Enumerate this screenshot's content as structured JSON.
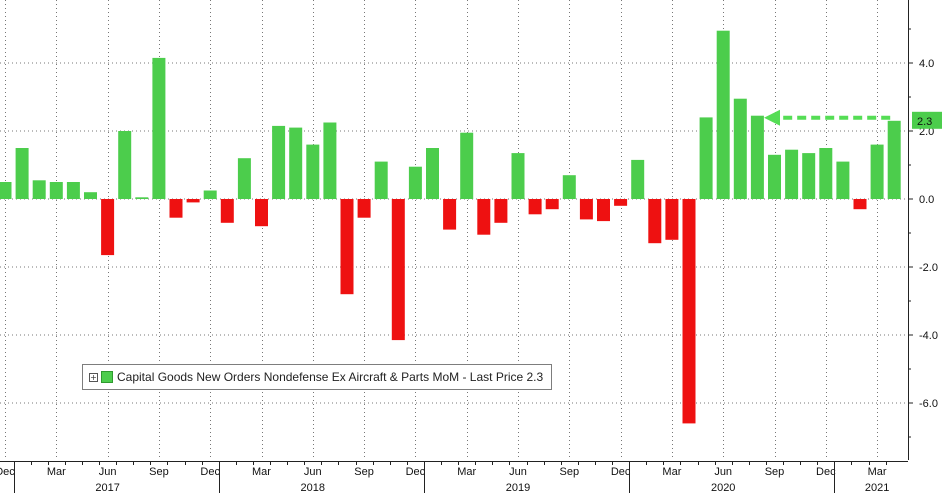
{
  "chart_data": {
    "type": "bar",
    "series_name": "Capital Goods New Orders Nondefense Ex Aircraft & Parts MoM",
    "legend_text": "Capital Goods New Orders Nondefense Ex Aircraft & Parts MoM - Last Price 2.3",
    "last_price_label": "2.3",
    "last_price": 2.3,
    "ylim": [
      -7.5,
      5.8
    ],
    "y_ticks": [
      4.0,
      2.0,
      0.0,
      -2.0,
      -4.0,
      -6.0
    ],
    "y_tick_labels": [
      "4.0",
      "2.0",
      "0.0",
      "-2.0",
      "-4.0",
      "-6.0"
    ],
    "x_tick_labels": [
      "Dec",
      "Mar",
      "Jun",
      "Sep",
      "Dec",
      "Mar",
      "Jun",
      "Sep",
      "Dec",
      "Mar",
      "Jun",
      "Sep",
      "Dec",
      "Mar",
      "Jun",
      "Sep",
      "Dec",
      "Mar"
    ],
    "x_tick_month_index": [
      0,
      3,
      6,
      9,
      12,
      15,
      18,
      21,
      24,
      27,
      30,
      33,
      36,
      39,
      42,
      45,
      48,
      51
    ],
    "year_labels": [
      "2017",
      "2018",
      "2019",
      "2020",
      "2021"
    ],
    "year_label_month_index": [
      6,
      18,
      30,
      42,
      51
    ],
    "year_separator_month_index": [
      0.5,
      12.5,
      24.5,
      36.5,
      48.5
    ],
    "categories": [
      "Dec 2016",
      "Jan 2017",
      "Feb 2017",
      "Mar 2017",
      "Apr 2017",
      "May 2017",
      "Jun 2017",
      "Jul 2017",
      "Aug 2017",
      "Sep 2017",
      "Oct 2017",
      "Nov 2017",
      "Dec 2017",
      "Jan 2018",
      "Feb 2018",
      "Mar 2018",
      "Apr 2018",
      "May 2018",
      "Jun 2018",
      "Jul 2018",
      "Aug 2018",
      "Sep 2018",
      "Oct 2018",
      "Nov 2018",
      "Dec 2018",
      "Jan 2019",
      "Feb 2019",
      "Mar 2019",
      "Apr 2019",
      "May 2019",
      "Jun 2019",
      "Jul 2019",
      "Aug 2019",
      "Sep 2019",
      "Oct 2019",
      "Nov 2019",
      "Dec 2019",
      "Jan 2020",
      "Feb 2020",
      "Mar 2020",
      "Apr 2020",
      "May 2020",
      "Jun 2020",
      "Jul 2020",
      "Aug 2020",
      "Sep 2020",
      "Oct 2020",
      "Nov 2020",
      "Dec 2020",
      "Jan 2021",
      "Feb 2021",
      "Mar 2021",
      "Apr 2021"
    ],
    "values": [
      0.5,
      1.5,
      0.55,
      0.5,
      0.5,
      0.2,
      -1.65,
      2.0,
      0.05,
      4.15,
      -0.55,
      -0.1,
      0.25,
      -0.7,
      1.2,
      -0.8,
      2.15,
      2.1,
      1.6,
      2.25,
      -2.8,
      -0.55,
      1.1,
      -4.15,
      0.95,
      1.5,
      -0.9,
      1.95,
      -1.05,
      -0.7,
      1.35,
      -0.45,
      -0.3,
      0.7,
      -0.6,
      -0.65,
      -0.2,
      1.15,
      -1.3,
      -1.2,
      -6.6,
      2.4,
      4.95,
      2.95,
      2.45,
      1.3,
      1.45,
      1.35,
      1.5,
      1.1,
      -0.3,
      1.6,
      2.3
    ],
    "colors": {
      "positive": "#4ccd4c",
      "negative": "#ee1111",
      "arrow": "#55dd55",
      "label_bg": "#4ccd4c"
    },
    "grid": true,
    "grid_style": "dotted",
    "y_axis_side": "right",
    "legend_position": "lower-left"
  }
}
